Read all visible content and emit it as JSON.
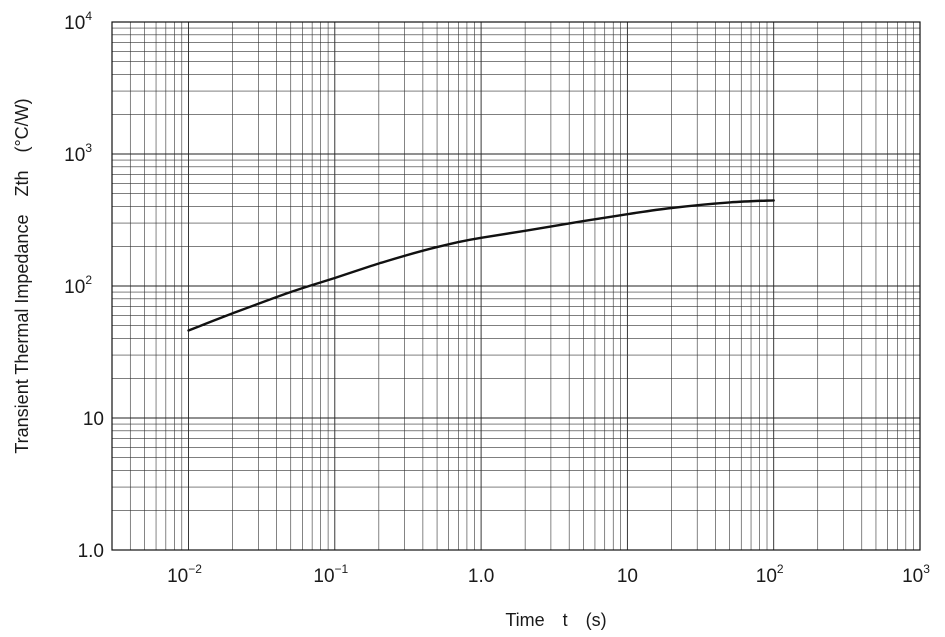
{
  "chart_data": {
    "type": "line",
    "title": "",
    "xlabel": "Time t (s)",
    "ylabel": "Transient Thermal Impedance Zth (°C/W)",
    "x_scale": "log",
    "y_scale": "log",
    "xlim": [
      0.003,
      1000
    ],
    "ylim": [
      1,
      10000
    ],
    "grid": true,
    "x_ticks": [
      {
        "base": "10",
        "exp": "−2",
        "value": 0.01
      },
      {
        "base": "10",
        "exp": "−1",
        "value": 0.1
      },
      {
        "base": "1.0",
        "exp": "",
        "value": 1
      },
      {
        "base": "10",
        "exp": "",
        "value": 10
      },
      {
        "base": "10",
        "exp": "2",
        "value": 100
      },
      {
        "base": "10",
        "exp": "3",
        "value": 1000
      }
    ],
    "y_ticks": [
      {
        "base": "1.0",
        "exp": "",
        "value": 1
      },
      {
        "base": "10",
        "exp": "",
        "value": 10
      },
      {
        "base": "10",
        "exp": "2",
        "value": 100
      },
      {
        "base": "10",
        "exp": "3",
        "value": 1000
      },
      {
        "base": "10",
        "exp": "4",
        "value": 10000
      }
    ],
    "series": [
      {
        "x": [
          0.01,
          0.02,
          0.05,
          0.1,
          0.2,
          0.4,
          0.7,
          1,
          2,
          5,
          10,
          20,
          50,
          100
        ],
        "y": [
          46,
          62,
          90,
          115,
          148,
          185,
          215,
          232,
          262,
          310,
          350,
          390,
          430,
          445
        ]
      }
    ]
  }
}
